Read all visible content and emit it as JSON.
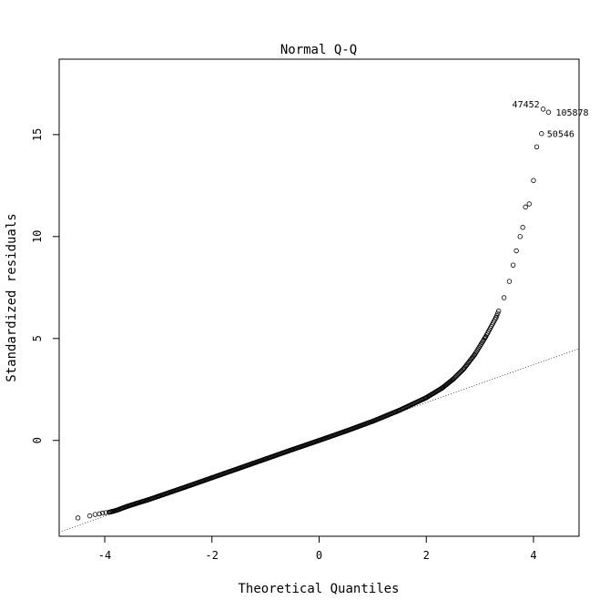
{
  "chart_data": {
    "type": "scatter",
    "title": "Normal Q-Q",
    "xlabel": "Theoretical Quantiles",
    "ylabel": "Standardized residuals",
    "xlim": [
      -4.85,
      4.85
    ],
    "ylim": [
      -4.7,
      18.7
    ],
    "xticks": [
      -4,
      -2,
      0,
      2,
      4
    ],
    "yticks": [
      0,
      5,
      10,
      15
    ],
    "grid": false,
    "reference_line": {
      "style": "dotted",
      "slope": 0.928,
      "intercept": 0
    },
    "points": [
      [
        -4.5,
        -3.8
      ],
      [
        -4.28,
        -3.7
      ],
      [
        -4.18,
        -3.63
      ],
      [
        -4.1,
        -3.6
      ],
      [
        -4.04,
        -3.56
      ],
      [
        -3.98,
        -3.54
      ],
      [
        -3.92,
        -3.52
      ],
      [
        -3.85,
        -3.48
      ],
      [
        -3.75,
        -3.4
      ],
      [
        -3.6,
        -3.25
      ],
      [
        -3.4,
        -3.08
      ],
      [
        -3.2,
        -2.92
      ],
      [
        -3.0,
        -2.74
      ],
      [
        -2.5,
        -2.29
      ],
      [
        -2.0,
        -1.83
      ],
      [
        -1.5,
        -1.37
      ],
      [
        -1.0,
        -0.91
      ],
      [
        -0.5,
        -0.45
      ],
      [
        0.0,
        0.0
      ],
      [
        0.5,
        0.46
      ],
      [
        1.0,
        0.94
      ],
      [
        1.5,
        1.48
      ],
      [
        2.0,
        2.1
      ],
      [
        2.3,
        2.58
      ],
      [
        2.5,
        3.0
      ],
      [
        2.7,
        3.52
      ],
      [
        2.9,
        4.2
      ],
      [
        3.1,
        5.05
      ],
      [
        3.3,
        6.02
      ],
      [
        3.45,
        7.0
      ],
      [
        3.55,
        7.8
      ],
      [
        3.62,
        8.6
      ],
      [
        3.68,
        9.3
      ],
      [
        3.75,
        10.0
      ],
      [
        3.8,
        10.45
      ],
      [
        3.85,
        11.45
      ],
      [
        3.92,
        11.6
      ],
      [
        4.0,
        12.75
      ],
      [
        4.06,
        14.4
      ],
      [
        4.15,
        15.05
      ],
      [
        4.28,
        16.1
      ],
      [
        4.18,
        16.25
      ]
    ],
    "labeled_points": [
      {
        "label": "47452",
        "x": 4.18,
        "y": 16.25
      },
      {
        "label": "105878",
        "x": 4.28,
        "y": 16.1
      },
      {
        "label": "50546",
        "x": 4.15,
        "y": 15.05
      }
    ],
    "marker": "open-circle"
  }
}
